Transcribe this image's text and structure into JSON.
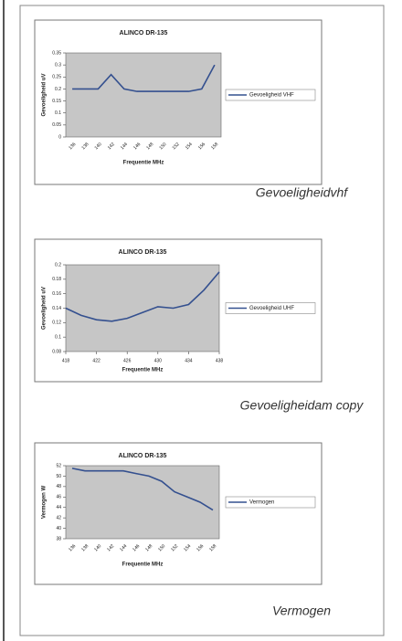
{
  "chart_data": [
    {
      "type": "line",
      "title": "ALINCO DR-135",
      "caption": "Gevoeligheidvhf",
      "x_label": "Frequentie MHz",
      "y_label": "Gevoeligheid uV",
      "categories": [
        "136",
        "138",
        "140",
        "142",
        "144",
        "146",
        "148",
        "150",
        "152",
        "154",
        "156",
        "158"
      ],
      "series": [
        {
          "name": "Gevoeligheid VHF",
          "color": "#34508f",
          "values": [
            0.2,
            0.2,
            0.2,
            0.26,
            0.2,
            0.19,
            0.19,
            0.19,
            0.19,
            0.19,
            0.2,
            0.3
          ]
        }
      ],
      "ylim": [
        0,
        0.35
      ],
      "yticks": [
        0,
        0.05,
        0.1,
        0.15,
        0.2,
        0.25,
        0.3,
        0.35
      ],
      "grid": false
    },
    {
      "type": "line",
      "title": "ALINCO DR-135",
      "caption": "Gevoeligheidam copy",
      "x_label": "Frequentie MHz",
      "y_label": "Gevoeligheid uV",
      "x": [
        418,
        420,
        422,
        424,
        426,
        428,
        430,
        432,
        434,
        436,
        438
      ],
      "series": [
        {
          "name": "Gevoeligheid UHF",
          "color": "#34508f",
          "values": [
            0.14,
            0.13,
            0.124,
            0.122,
            0.126,
            0.134,
            0.142,
            0.14,
            0.145,
            0.165,
            0.19
          ]
        }
      ],
      "xlim": [
        418,
        438
      ],
      "xticks": [
        418,
        422,
        426,
        430,
        434,
        438
      ],
      "ylim": [
        0.08,
        0.2
      ],
      "yticks": [
        0.08,
        0.1,
        0.12,
        0.14,
        0.16,
        0.18,
        0.2
      ],
      "grid": false
    },
    {
      "type": "line",
      "title": "ALINCO DR-135",
      "caption": "Vermogen",
      "x_label": "Frequentie MHz",
      "y_label": "Vermogen W",
      "categories": [
        "136",
        "138",
        "140",
        "142",
        "144",
        "146",
        "148",
        "150",
        "152",
        "154",
        "156",
        "158"
      ],
      "series": [
        {
          "name": "Vermogen",
          "color": "#34508f",
          "values": [
            51.5,
            51,
            51,
            51,
            51,
            50.5,
            50,
            49,
            47,
            46,
            45,
            43.5
          ]
        }
      ],
      "ylim": [
        38,
        52
      ],
      "yticks": [
        38,
        40,
        42,
        44,
        46,
        48,
        50,
        52
      ],
      "grid": false
    }
  ]
}
